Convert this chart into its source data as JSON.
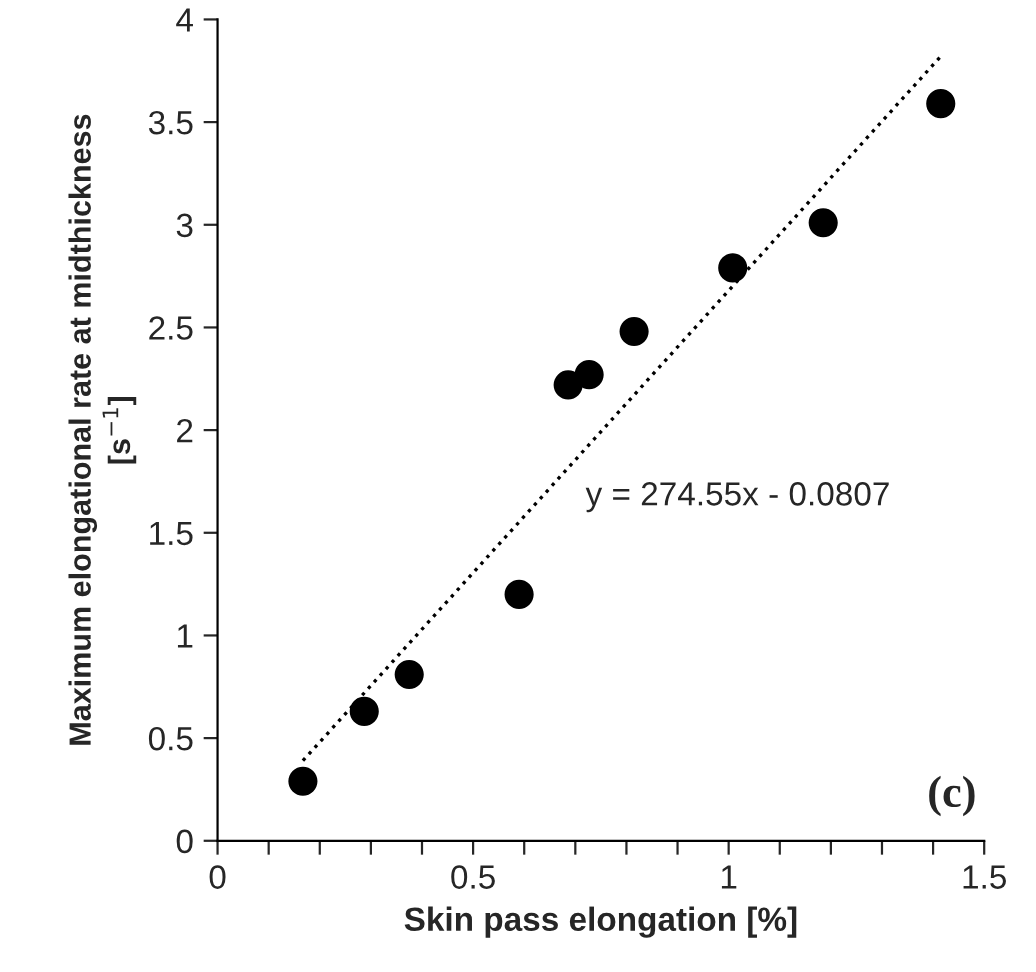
{
  "chart_data": {
    "type": "scatter",
    "xlabel": "Skin pass elongation [%]",
    "ylabel": "Maximum elongational rate at midthickness\n[s$^{−1}$]",
    "annotations": [
      "y = 274.55x - 0.0807",
      "(c)"
    ],
    "series": [
      {
        "color": "#000000",
        "marker": "circle",
        "x": [
          0.167,
          0.287,
          0.375,
          0.59,
          0.686,
          0.727,
          0.815,
          1.008,
          1.185,
          1.415
        ],
        "values": [
          0.29,
          0.63,
          0.81,
          1.2,
          2.22,
          2.27,
          2.48,
          2.79,
          3.01,
          3.59
        ]
      },
      {
        "type": "line",
        "color": "#000000",
        "line_style": "dotted",
        "marker": "none",
        "x": [
          0.167,
          1.415
        ],
        "values": [
          0.39,
          3.82
        ]
      }
    ],
    "xlim": [
      0,
      1.5
    ],
    "ylim": [
      0,
      4
    ],
    "xticks": [
      0,
      {
        "value": 0.1,
        "label": null
      },
      {
        "value": 0.2,
        "label": null
      },
      {
        "value": 0.3,
        "label": null
      },
      {
        "value": 0.4,
        "label": null
      },
      0.5,
      {
        "value": 0.6,
        "label": null
      },
      {
        "value": 0.7,
        "label": null
      },
      {
        "value": 0.8,
        "label": null
      },
      {
        "value": 0.9,
        "label": null
      },
      1,
      {
        "value": 1.1,
        "label": null
      },
      {
        "value": 1.2,
        "label": null
      },
      {
        "value": 1.3,
        "label": null
      },
      {
        "value": 1.4,
        "label": null
      },
      1.5
    ],
    "yticks": [
      0,
      0.5,
      1,
      1.5,
      2,
      2.5,
      3,
      3.5,
      4
    ],
    "grid": false,
    "legend": false
  }
}
